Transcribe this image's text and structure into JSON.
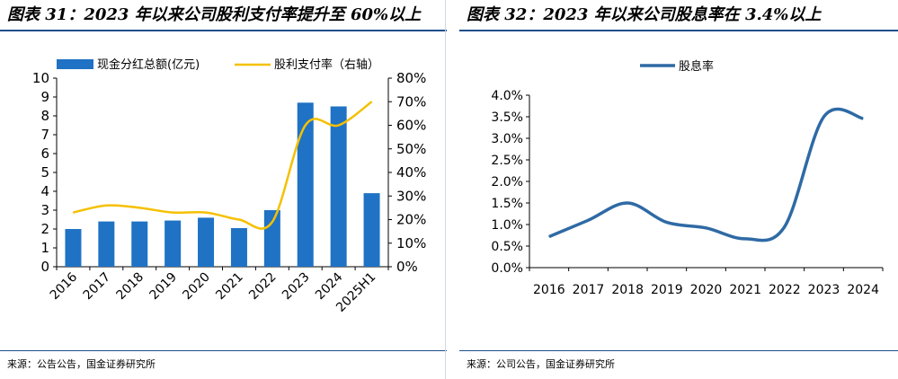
{
  "left_panel": {
    "title": "图表 31：2023 年以来公司股利支付率提升至 60%以上",
    "source": "来源：公告公告，国金证券研究所"
  },
  "right_panel": {
    "title": "图表 32：2023 年以来公司股息率在 3.4%以上",
    "source": "来源：公司公告，国金证券研究所"
  },
  "colors": {
    "bar": "#1f72c4",
    "payout_line": "#f5c000",
    "yield_line": "#2e6aa5",
    "rule": "#1f4e8c"
  },
  "chart_data": [
    {
      "type": "bar",
      "categories": [
        "2016",
        "2017",
        "2018",
        "2019",
        "2020",
        "2021",
        "2022",
        "2023",
        "2024",
        "2025H1"
      ],
      "series": [
        {
          "name": "现金分红总额(亿元)",
          "type": "bar",
          "axis": "left",
          "values": [
            2.0,
            2.4,
            2.4,
            2.45,
            2.6,
            2.05,
            3.0,
            8.7,
            8.5,
            3.9
          ]
        },
        {
          "name": "股利支付率（右轴）",
          "type": "line",
          "axis": "right",
          "values": [
            0.23,
            0.26,
            0.25,
            0.23,
            0.23,
            0.2,
            0.19,
            0.6,
            0.6,
            0.7
          ]
        }
      ],
      "y_left": {
        "min": 0,
        "max": 10,
        "ticks": [
          "0",
          "1",
          "2",
          "3",
          "4",
          "5",
          "6",
          "7",
          "8",
          "9",
          "10"
        ]
      },
      "y_right": {
        "min": 0,
        "max": 0.8,
        "ticks": [
          "0%",
          "10%",
          "20%",
          "30%",
          "40%",
          "50%",
          "60%",
          "70%",
          "80%"
        ]
      },
      "legend_position": "top",
      "grid": false
    },
    {
      "type": "line",
      "categories": [
        "2016",
        "2017",
        "2018",
        "2019",
        "2020",
        "2021",
        "2022",
        "2023",
        "2024"
      ],
      "series": [
        {
          "name": "股息率",
          "values": [
            0.0072,
            0.011,
            0.015,
            0.0105,
            0.0092,
            0.0067,
            0.0095,
            0.035,
            0.0346
          ]
        }
      ],
      "y": {
        "min": 0,
        "max": 0.04,
        "ticks": [
          "0.0%",
          "0.5%",
          "1.0%",
          "1.5%",
          "2.0%",
          "2.5%",
          "3.0%",
          "3.5%",
          "4.0%"
        ]
      },
      "legend_position": "top",
      "grid": false
    }
  ]
}
